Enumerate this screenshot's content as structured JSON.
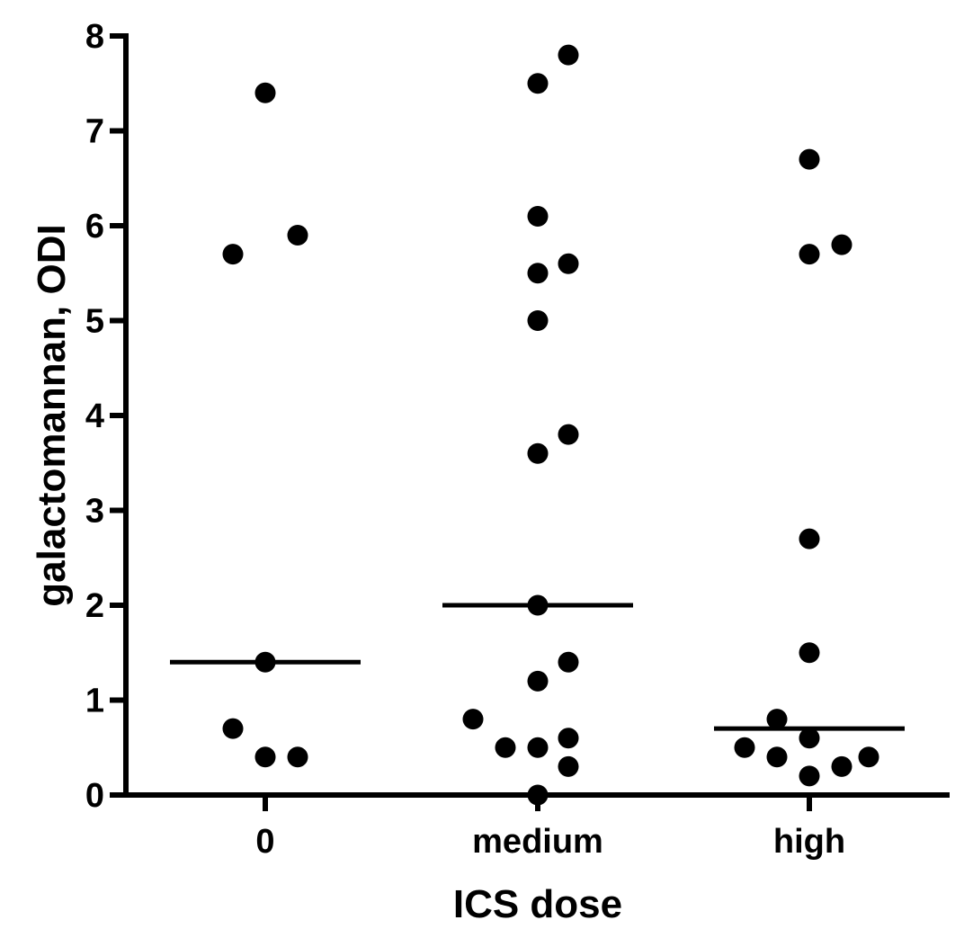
{
  "chart_data": {
    "type": "scatter",
    "title": "",
    "xlabel": "ICS dose",
    "ylabel": "galactomannan, ODI",
    "ylim": [
      0,
      8
    ],
    "yticks": [
      "0",
      "1",
      "2",
      "3",
      "4",
      "5",
      "6",
      "7",
      "8"
    ],
    "categories": [
      "0",
      "medium",
      "high"
    ],
    "grid": false,
    "legend": "none",
    "point_color": "#000000",
    "groups": [
      {
        "category": "0",
        "median": 1.4,
        "values": [
          7.4,
          5.7,
          5.9,
          1.4,
          0.7,
          0.4,
          0.4
        ]
      },
      {
        "category": "medium",
        "median": 2.0,
        "values": [
          7.8,
          7.5,
          6.1,
          5.5,
          5.6,
          5.0,
          3.6,
          3.8,
          2.0,
          1.2,
          1.4,
          0.8,
          0.5,
          0.5,
          0.6,
          0.3,
          0.0
        ]
      },
      {
        "category": "high",
        "median": 0.7,
        "values": [
          6.7,
          5.7,
          5.8,
          2.7,
          1.5,
          0.8,
          0.5,
          0.4,
          0.6,
          0.2,
          0.3,
          0.4
        ]
      }
    ]
  }
}
